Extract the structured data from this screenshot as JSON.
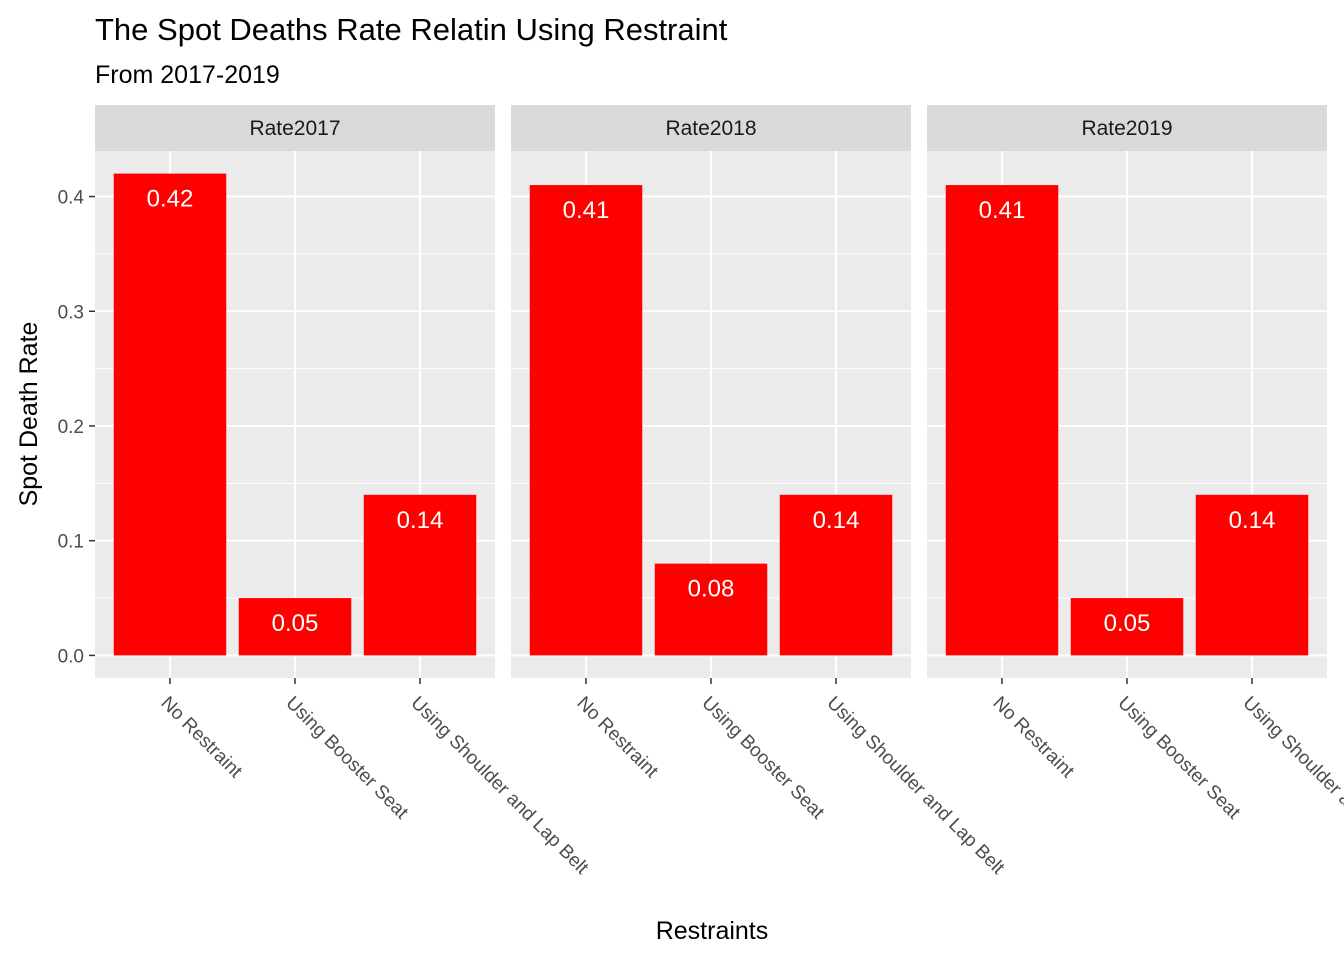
{
  "chart_data": {
    "type": "bar",
    "title": "The Spot Deaths Rate Relatin Using Restraint",
    "subtitle": "From 2017-2019",
    "xlabel": "Restraints",
    "ylabel": "Spot Death Rate",
    "categories": [
      "No Restraint",
      "Using Booster Seat",
      "Using Shoulder and Lap Belt"
    ],
    "facets": [
      {
        "name": "Rate2017",
        "values": [
          0.42,
          0.05,
          0.14
        ],
        "labels": [
          "0.42",
          "0.05",
          "0.14"
        ]
      },
      {
        "name": "Rate2018",
        "values": [
          0.41,
          0.08,
          0.14
        ],
        "labels": [
          "0.41",
          "0.08",
          "0.14"
        ]
      },
      {
        "name": "Rate2019",
        "values": [
          0.41,
          0.05,
          0.14
        ],
        "labels": [
          "0.41",
          "0.05",
          "0.14"
        ]
      }
    ],
    "ylim": [
      -0.0197,
      0.4397
    ],
    "yticks": [
      0.0,
      0.1,
      0.2,
      0.3,
      0.4
    ],
    "ytick_labels": [
      "0.0",
      "0.1",
      "0.2",
      "0.3",
      "0.4"
    ],
    "grid": true,
    "legend": "none",
    "colors": {
      "bar": "#FF0000",
      "panel_background": "#EBEBEB",
      "strip_background": "#D9D9D9",
      "grid": "#FFFFFF"
    }
  }
}
